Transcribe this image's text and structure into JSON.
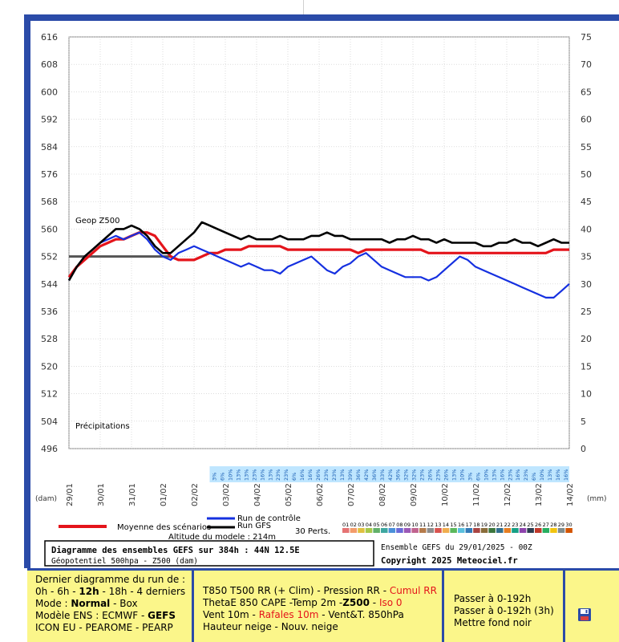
{
  "chart_data": {
    "type": "line",
    "title": "Diagramme des ensembles GEFS sur 384h : 44N 12.5E",
    "subtitle": "Géopotentiel 500hpa - Z500 (dam)",
    "ensemble_label": "Ensemble GEFS du 29/01/2025 - 00Z",
    "copyright": "Copyright 2025 Meteociel.fr",
    "altitude_label": "Altitude du modele : 214m",
    "left_axis_unit": "(dam)",
    "right_axis_unit": "(mm)",
    "series_label_geop": "Geop Z500",
    "series_label_precip": "Précipitations",
    "left_ticks": [
      616,
      608,
      600,
      592,
      584,
      576,
      568,
      560,
      552,
      544,
      536,
      528,
      520,
      512,
      504,
      496
    ],
    "right_ticks": [
      75,
      70,
      65,
      60,
      55,
      50,
      45,
      40,
      35,
      30,
      25,
      20,
      15,
      10,
      5,
      0
    ],
    "ylim_left": [
      496,
      616
    ],
    "ylim_right": [
      0,
      75
    ],
    "x_labels": [
      "29/01",
      "30/01",
      "31/01",
      "01/02",
      "02/02",
      "03/02",
      "04/02",
      "05/02",
      "06/02",
      "07/02",
      "08/02",
      "09/02",
      "10/02",
      "11/02",
      "12/02",
      "13/02",
      "14/02"
    ],
    "climatology_value": 552,
    "snow_row": [
      "3%",
      "6%",
      "10%",
      "13%",
      "13%",
      "23%",
      "16%",
      "13%",
      "23%",
      "23%",
      "6%",
      "16%",
      "16%",
      "26%",
      "23%",
      "23%",
      "13%",
      "39%",
      "36%",
      "42%",
      "36%",
      "33%",
      "42%",
      "36%",
      "32%",
      "32%",
      "23%",
      "26%",
      "23%",
      "26%",
      "13%",
      "10%",
      "3%",
      "6%",
      "10%",
      "13%",
      "16%",
      "23%",
      "16%",
      "23%",
      "6%",
      "10%",
      "13%",
      "16%",
      "16%"
    ],
    "legend": {
      "moyenne": "Moyenne des scénarios",
      "controle": "Run de contrôle",
      "gfs": "Run GFS",
      "perts": "30 Perts.",
      "pert_numbers": [
        "01",
        "02",
        "03",
        "04",
        "05",
        "06",
        "07",
        "08",
        "09",
        "10",
        "11",
        "12",
        "13",
        "14",
        "15",
        "16",
        "17",
        "18",
        "19",
        "20",
        "21",
        "22",
        "23",
        "24",
        "25",
        "26",
        "27",
        "28",
        "29",
        "30"
      ]
    },
    "series": [
      {
        "name": "Moyenne des scénarios",
        "x": [
          0,
          6,
          12,
          18,
          24,
          30,
          36,
          42,
          48,
          54,
          60,
          66,
          72,
          78,
          84,
          90,
          96,
          102,
          108,
          114,
          120,
          126,
          132,
          138,
          144,
          150,
          156,
          162,
          168,
          174,
          180,
          186,
          192,
          198,
          204,
          210,
          216,
          222,
          228,
          234,
          240,
          246,
          252,
          258,
          264,
          270,
          276,
          282,
          288,
          294,
          300,
          306,
          312,
          318,
          324,
          330,
          336,
          342,
          348,
          354,
          360,
          366,
          372,
          378,
          384
        ],
        "values": [
          546,
          549,
          551,
          553,
          555,
          556,
          557,
          557,
          558,
          559,
          559,
          558,
          555,
          552,
          551,
          551,
          551,
          552,
          553,
          553,
          554,
          554,
          554,
          555,
          555,
          555,
          555,
          555,
          554,
          554,
          554,
          554,
          554,
          554,
          554,
          554,
          554,
          553,
          554,
          554,
          554,
          554,
          554,
          554,
          554,
          554,
          553,
          553,
          553,
          553,
          553,
          553,
          553,
          553,
          553,
          553,
          553,
          553,
          553,
          553,
          553,
          553,
          554,
          554,
          554
        ]
      },
      {
        "name": "Run de contrôle",
        "x": [
          0,
          6,
          12,
          18,
          24,
          30,
          36,
          42,
          48,
          54,
          60,
          66,
          72,
          78,
          84,
          90,
          96,
          102,
          108,
          114,
          120,
          126,
          132,
          138,
          144,
          150,
          156,
          162,
          168,
          174,
          180,
          186,
          192,
          198,
          204,
          210,
          216,
          222,
          228,
          234,
          240,
          246,
          252,
          258,
          264,
          270,
          276,
          282,
          288,
          294,
          300,
          306,
          312,
          318,
          324,
          330,
          336,
          342,
          348,
          354,
          360,
          366,
          372,
          378,
          384
        ],
        "values": [
          545,
          549,
          552,
          554,
          556,
          557,
          558,
          557,
          558,
          559,
          557,
          554,
          552,
          551,
          553,
          554,
          555,
          554,
          553,
          552,
          551,
          550,
          549,
          550,
          549,
          548,
          548,
          547,
          549,
          550,
          551,
          552,
          550,
          548,
          547,
          549,
          550,
          552,
          553,
          551,
          549,
          548,
          547,
          546,
          546,
          546,
          545,
          546,
          548,
          550,
          552,
          551,
          549,
          548,
          547,
          546,
          545,
          544,
          543,
          542,
          541,
          540,
          540,
          542,
          544
        ]
      },
      {
        "name": "Run GFS",
        "x": [
          0,
          6,
          12,
          18,
          24,
          30,
          36,
          42,
          48,
          54,
          60,
          66,
          72,
          78,
          84,
          90,
          96,
          102,
          108,
          114,
          120,
          126,
          132,
          138,
          144,
          150,
          156,
          162,
          168,
          174,
          180,
          186,
          192,
          198,
          204,
          210,
          216,
          222,
          228,
          234,
          240,
          246,
          252,
          258,
          264,
          270,
          276,
          282,
          288,
          294,
          300,
          306,
          312,
          318,
          324,
          330,
          336,
          342,
          348,
          354,
          360,
          366,
          372,
          378,
          384
        ],
        "values": [
          545,
          549,
          552,
          554,
          556,
          558,
          560,
          560,
          561,
          560,
          558,
          555,
          553,
          553,
          555,
          557,
          559,
          562,
          561,
          560,
          559,
          558,
          557,
          558,
          557,
          557,
          557,
          558,
          557,
          557,
          557,
          558,
          558,
          559,
          558,
          558,
          557,
          557,
          557,
          557,
          557,
          556,
          557,
          557,
          558,
          557,
          557,
          556,
          557,
          556,
          556,
          556,
          556,
          555,
          555,
          556,
          556,
          557,
          556,
          556,
          555,
          556,
          557,
          556,
          556
        ]
      }
    ]
  },
  "panel_left": {
    "line1": "Dernier diagramme du run de :",
    "line2": "0h - 6h - ",
    "line2_bold": "12h",
    "line2_rest": "- 18h - 4 derniers",
    "mode_label": "Mode : ",
    "mode_bold": "Normal",
    "mode_rest": " - Box",
    "models_label": "Modèle ENS : ECMWF - ",
    "models_bold": "GEFS",
    "line5": "ICON EU - PEAROME - PEARP"
  },
  "panel_mid": {
    "a1": "T850 T500 RR",
    "a2": " (+ Clim) - Pression RR - ",
    "a3": "Cumul RR",
    "b1": "ThetaE 850 CAPE -Temp 2m -",
    "b2": "Z500",
    "b3": " - ",
    "b4": "Iso 0",
    "c1": "Vent 10m - ",
    "c2": "Rafales 10m",
    "c3": " - Vent&T. 850hPa",
    "d1": "Hauteur neige - Nouv. neige"
  },
  "panel_right": {
    "l1": "Passer à 0-192h",
    "l2": "Passer à 0-192h (3h)",
    "l3": "Mettre fond noir"
  }
}
